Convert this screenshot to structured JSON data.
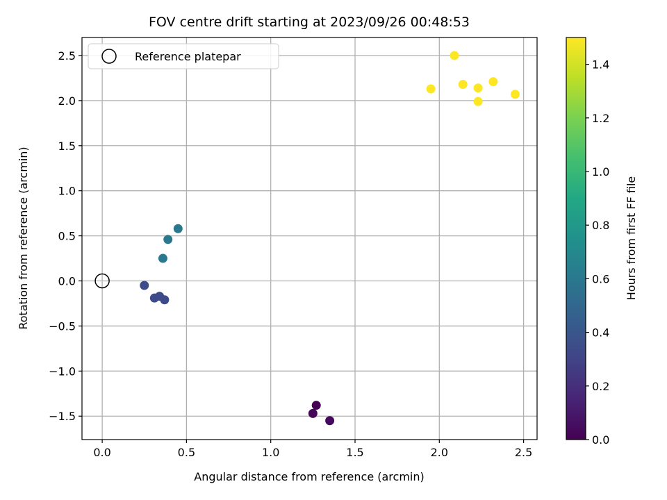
{
  "chart_data": {
    "type": "scatter",
    "title": "FOV centre drift starting at 2023/09/26 00:48:53",
    "xlabel": "Angular distance from reference (arcmin)",
    "ylabel": "Rotation from reference (arcmin)",
    "xlim": [
      -0.12,
      2.58
    ],
    "ylim": [
      -1.76,
      2.7
    ],
    "xticks": [
      0.0,
      0.5,
      1.0,
      1.5,
      2.0,
      2.5
    ],
    "xtick_labels": [
      "0.0",
      "0.5",
      "1.0",
      "1.5",
      "2.0",
      "2.5"
    ],
    "yticks": [
      -1.5,
      -1.0,
      -0.5,
      0.0,
      0.5,
      1.0,
      1.5,
      2.0,
      2.5
    ],
    "ytick_labels": [
      "−1.5",
      "−1.0",
      "−0.5",
      "0.0",
      "0.5",
      "1.0",
      "1.5",
      "2.0",
      "2.5"
    ],
    "grid": true,
    "colormap": "viridis",
    "colorbar": {
      "label": "Hours from first FF file",
      "range": [
        0.0,
        1.5
      ],
      "ticks": [
        0.0,
        0.2,
        0.4,
        0.6,
        0.8,
        1.0,
        1.2,
        1.4
      ],
      "tick_labels": [
        "0.0",
        "0.2",
        "0.4",
        "0.6",
        "0.8",
        "1.0",
        "1.2",
        "1.4"
      ]
    },
    "legend": {
      "placement": "top-left",
      "entries": [
        {
          "label": "Reference platepar",
          "marker": "open-circle",
          "color": "#000000"
        }
      ]
    },
    "reference_point": {
      "x": 0.0,
      "y": 0.0
    },
    "points": [
      {
        "x": 1.27,
        "y": -1.38,
        "hours": 0.0
      },
      {
        "x": 1.25,
        "y": -1.47,
        "hours": 0.02
      },
      {
        "x": 1.35,
        "y": -1.55,
        "hours": 0.04
      },
      {
        "x": 0.25,
        "y": -0.05,
        "hours": 0.34
      },
      {
        "x": 0.31,
        "y": -0.19,
        "hours": 0.34
      },
      {
        "x": 0.34,
        "y": -0.17,
        "hours": 0.34
      },
      {
        "x": 0.37,
        "y": -0.21,
        "hours": 0.34
      },
      {
        "x": 0.36,
        "y": 0.25,
        "hours": 0.6
      },
      {
        "x": 0.39,
        "y": 0.46,
        "hours": 0.6
      },
      {
        "x": 0.45,
        "y": 0.58,
        "hours": 0.6
      },
      {
        "x": 1.95,
        "y": 2.13,
        "hours": 1.5
      },
      {
        "x": 2.09,
        "y": 2.5,
        "hours": 1.5
      },
      {
        "x": 2.14,
        "y": 2.18,
        "hours": 1.5
      },
      {
        "x": 2.23,
        "y": 2.14,
        "hours": 1.5
      },
      {
        "x": 2.23,
        "y": 1.99,
        "hours": 1.5
      },
      {
        "x": 2.32,
        "y": 2.21,
        "hours": 1.5
      },
      {
        "x": 2.45,
        "y": 2.07,
        "hours": 1.5
      }
    ]
  }
}
